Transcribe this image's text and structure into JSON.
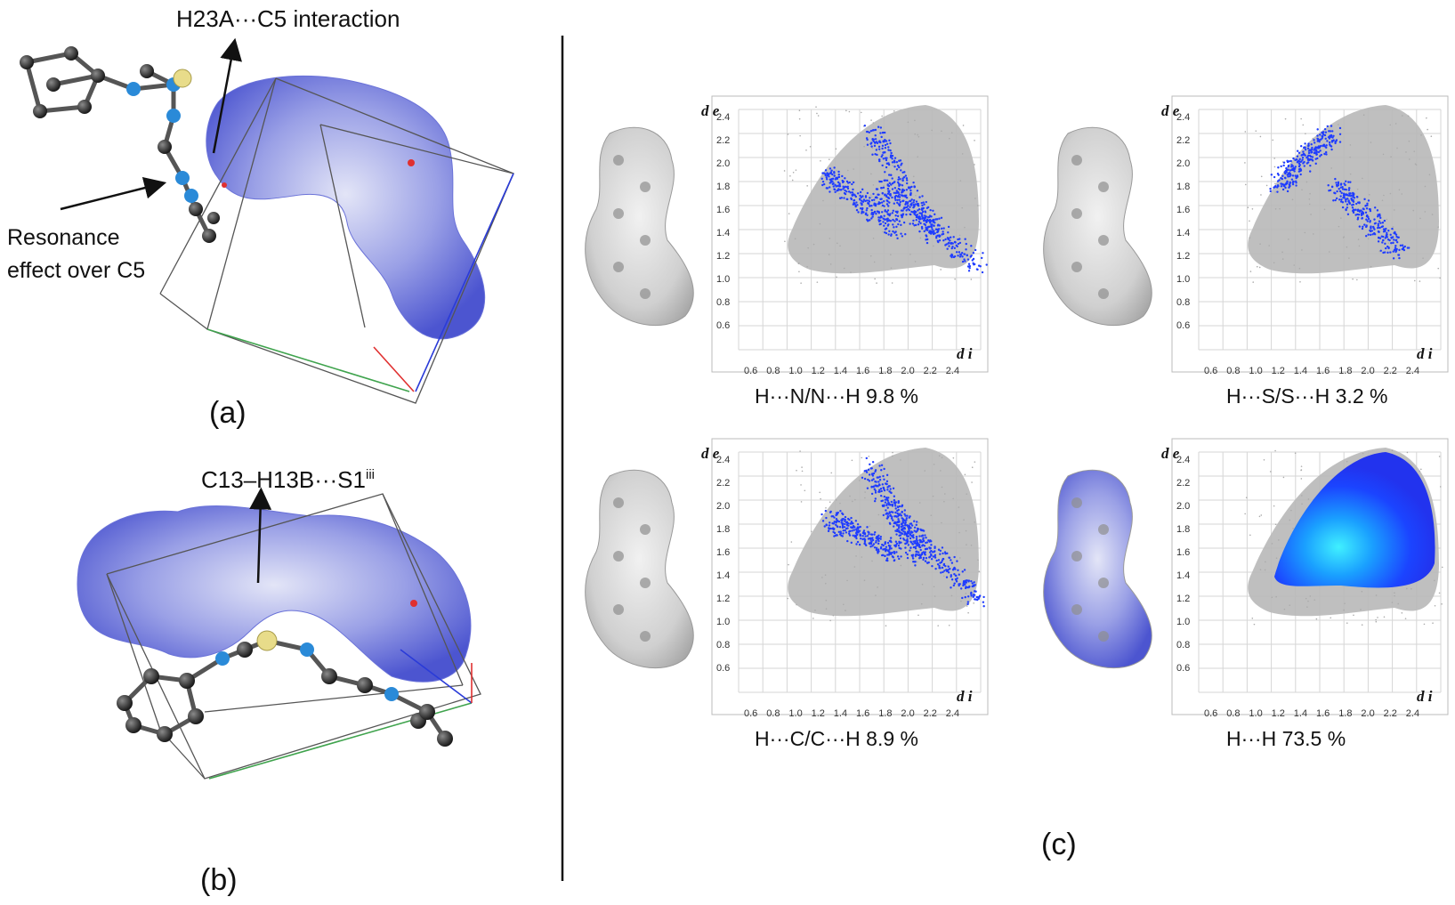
{
  "left": {
    "annot_a1": "H23A···C5 interaction",
    "annot_a2_line1": "Resonance",
    "annot_a2_line2": "effect over C5",
    "panel_a": "(a)",
    "annot_b_main": "C13–H13B···S1",
    "annot_b_sup": "iii",
    "panel_b": "(b)"
  },
  "right": {
    "panel_c": "(c)",
    "axis_de": "d e",
    "axis_di": "d i",
    "plots": [
      {
        "id": "hn",
        "label": "H···N/N···H   9.8 %",
        "percent": 9.8
      },
      {
        "id": "hs",
        "label": "H···S/S···H   3.2 %",
        "percent": 3.2
      },
      {
        "id": "hc",
        "label": "H···C/C···H   8.9 %",
        "percent": 8.9
      },
      {
        "id": "hh",
        "label": "H···H   73.5 %",
        "percent": 73.5
      }
    ],
    "y_ticks": [
      "2.4",
      "2.2",
      "2.0",
      "1.8",
      "1.6",
      "1.4",
      "1.2",
      "1.0",
      "0.8",
      "0.6"
    ],
    "x_ticks": [
      "0.6",
      "0.8",
      "1.0",
      "1.2",
      "1.4",
      "1.6",
      "1.8",
      "2.0",
      "2.2",
      "2.4"
    ]
  },
  "colors": {
    "surface_blue": "#5a64d8",
    "scatter_blue": "#1f3cff",
    "scatter_grey": "#b4b4b4",
    "hh_cyan": "#30d0ff"
  }
}
